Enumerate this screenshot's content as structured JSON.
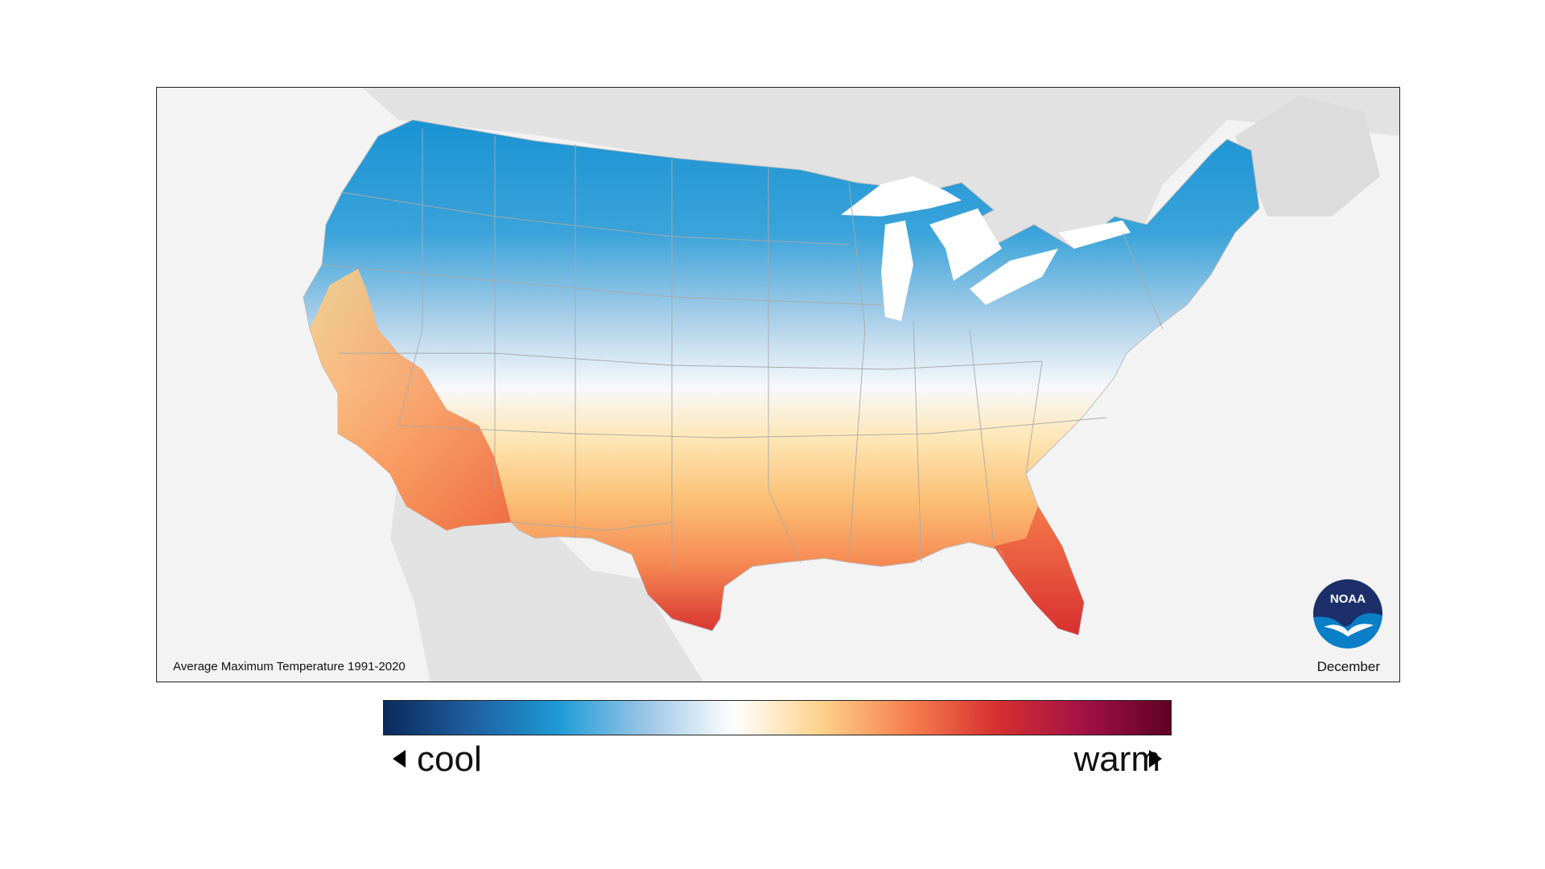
{
  "map": {
    "caption": "Average Maximum Temperature 1991-2020",
    "month": "December",
    "logo_text": "NOAA",
    "logo_icon": "noaa-logo-icon"
  },
  "legend": {
    "cool_label": "cool",
    "warm_label": "warm",
    "colors": [
      "#0b2a5c",
      "#1f5fa0",
      "#1e9bd7",
      "#9cc6e6",
      "#ffffff",
      "#fdd28b",
      "#f6804f",
      "#d7302f",
      "#a31146",
      "#5e0224"
    ]
  },
  "colors": {
    "frame_background": "#f3f3f3",
    "surrounding_land": "#e2e2e2",
    "water": "#ffffff",
    "cold_region": "#1e9bd7",
    "mid_region": "#fde3b0",
    "warm_region": "#f6804f",
    "hot_region": "#d7302f"
  }
}
